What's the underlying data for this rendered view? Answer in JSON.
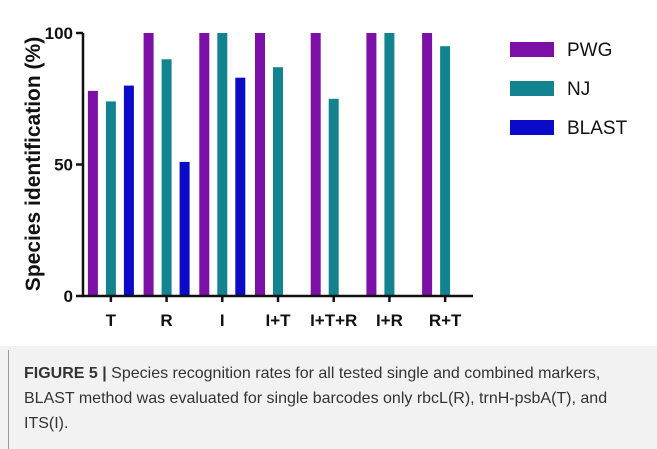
{
  "chart_data": {
    "type": "bar",
    "categories": [
      "T",
      "R",
      "I",
      "I+T",
      "I+T+R",
      "I+R",
      "R+T"
    ],
    "series": [
      {
        "name": "PWG",
        "values": [
          78,
          100,
          100,
          100,
          100,
          100,
          100
        ]
      },
      {
        "name": "NJ",
        "values": [
          74,
          90,
          100,
          87,
          75,
          100,
          95
        ]
      },
      {
        "name": "BLAST",
        "values": [
          80,
          51,
          83,
          null,
          null,
          null,
          null
        ]
      }
    ],
    "ylabel": "Species identification (%)",
    "xlabel": "",
    "ylim": [
      0,
      100
    ],
    "yticks": [
      0,
      50,
      100
    ],
    "grid": false,
    "legend_position": "right",
    "colors": [
      "#7b0fa6",
      "#13848f",
      "#0a0ac8"
    ]
  },
  "caption": {
    "label": "FIGURE 5 |",
    "text": " Species recognition rates for all tested single and combined markers, BLAST method was evaluated for single barcodes only rbcL(R), trnH-psbA(T), and ITS(I)."
  }
}
